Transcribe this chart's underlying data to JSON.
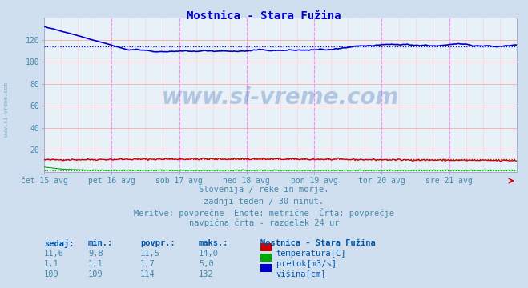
{
  "title": "Mostnica - Stara Fužina",
  "bg_color": "#d0dff0",
  "plot_bg_color": "#e8f0f8",
  "title_color": "#0000cc",
  "text_color": "#4488aa",
  "label_color": "#0055aa",
  "grid_h_color": "#ffaaaa",
  "grid_v_fine_color": "#ffcccc",
  "vline_color": "#ff88ff",
  "xlim": [
    0,
    336
  ],
  "ylim": [
    0,
    140
  ],
  "yticks": [
    20,
    40,
    60,
    80,
    100,
    120
  ],
  "xtick_labels": [
    "čet 15 avg",
    "pet 16 avg",
    "sob 17 avg",
    "ned 18 avg",
    "pon 19 avg",
    "tor 20 avg",
    "sre 21 avg"
  ],
  "xtick_positions": [
    0,
    48,
    96,
    144,
    192,
    240,
    288
  ],
  "vline_positions": [
    48,
    96,
    144,
    192,
    240,
    288
  ],
  "temp_avg": 11.5,
  "pretok_avg": 1.7,
  "visina_avg": 114,
  "temp_color": "#cc0000",
  "pretok_color": "#00aa00",
  "visina_color": "#0000cc",
  "footer_lines": [
    "Slovenija / reke in morje.",
    "zadnji teden / 30 minut.",
    "Meritve: povprečne  Enote: metrične  Črta: povprečje",
    "navpična črta - razdelek 24 ur"
  ],
  "table_headers": [
    "sedaj:",
    "min.:",
    "povpr.:",
    "maks.:"
  ],
  "table_values": [
    [
      "11,6",
      "9,8",
      "11,5",
      "14,0"
    ],
    [
      "1,1",
      "1,1",
      "1,7",
      "5,0"
    ],
    [
      "109",
      "109",
      "114",
      "132"
    ]
  ],
  "legend_labels": [
    "temperatura[C]",
    "pretok[m3/s]",
    "višina[cm]"
  ],
  "legend_colors": [
    "#cc0000",
    "#00aa00",
    "#0000cc"
  ],
  "station_name": "Mostnica - Stara Fužina"
}
